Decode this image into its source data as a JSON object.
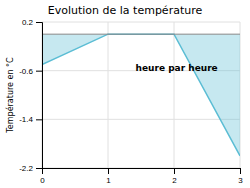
{
  "chart_data": {
    "type": "area",
    "title": "Evolution de la température",
    "ylabel": "Température en °C",
    "annotations": [
      "heure par heure"
    ],
    "x": [
      0,
      1,
      2,
      3
    ],
    "y": [
      -0.5,
      0.0,
      0.0,
      -2.0
    ],
    "baseline": 0.0,
    "color": "#5bbdd4",
    "xlim": [
      0,
      3
    ],
    "ylim": [
      -2.2,
      0.2
    ],
    "xticks": [
      0,
      1,
      2,
      3
    ],
    "yticks": [
      0.2,
      -0.6,
      -1.4,
      -2.2
    ],
    "grid": true
  }
}
